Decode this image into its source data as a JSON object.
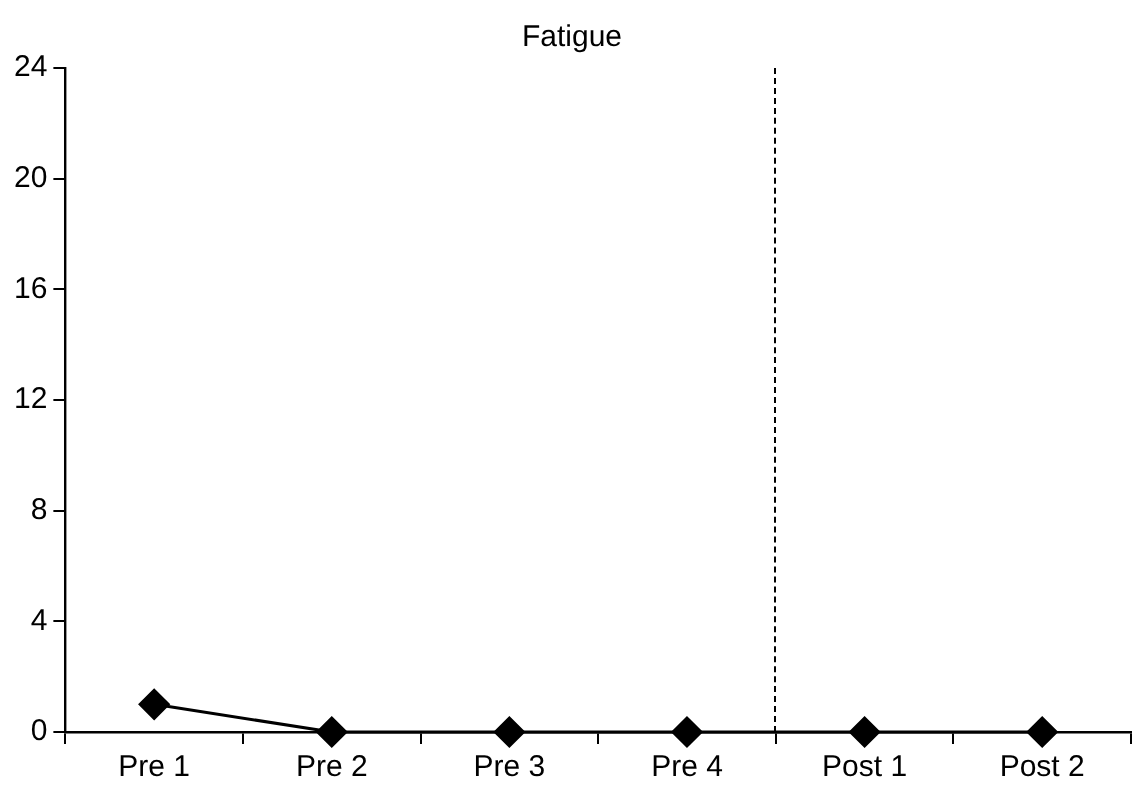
{
  "chart_data": {
    "type": "line",
    "title": "Fatigue",
    "categories": [
      "Pre 1",
      "Pre 2",
      "Pre 3",
      "Pre 4",
      "Post 1",
      "Post 2"
    ],
    "series": [
      {
        "color": "#000000",
        "values": [
          1,
          0,
          0,
          0,
          0,
          0
        ]
      }
    ],
    "ylim": [
      0,
      24
    ],
    "yticks": [
      0,
      4,
      8,
      12,
      16,
      20,
      24
    ],
    "grid": false,
    "legend": false,
    "marker": "diamond",
    "line_style": "solid"
  }
}
